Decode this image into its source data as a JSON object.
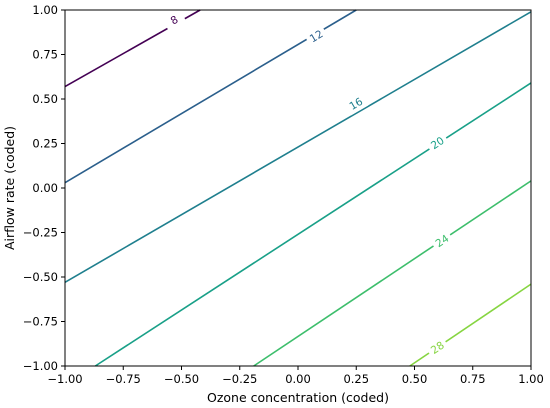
{
  "chart_data": {
    "type": "contour",
    "title": "",
    "xlabel": "Ozone concentration (coded)",
    "ylabel": "Airflow rate (coded)",
    "xlim": [
      -1.0,
      1.0
    ],
    "ylim": [
      -1.0,
      1.0
    ],
    "xticks": [
      "−1.00",
      "−0.75",
      "−0.50",
      "−0.25",
      "0.00",
      "0.25",
      "0.50",
      "0.75",
      "1.00"
    ],
    "yticks": [
      "−1.00",
      "−0.75",
      "−0.50",
      "−0.25",
      "0.00",
      "0.25",
      "0.50",
      "0.75",
      "1.00"
    ],
    "grid": false,
    "levels": [
      {
        "label": "8",
        "value": 8,
        "color": "#440154",
        "p1": [
          -1.0,
          0.57
        ],
        "p2": [
          -0.42,
          1.0
        ]
      },
      {
        "label": "12",
        "value": 12,
        "color": "#2b5f8c",
        "p1": [
          -1.0,
          0.03
        ],
        "p2": [
          0.25,
          1.0
        ]
      },
      {
        "label": "16",
        "value": 16,
        "color": "#1f7f8e",
        "p1": [
          -1.0,
          -0.53
        ],
        "p2": [
          1.0,
          0.99
        ]
      },
      {
        "label": "20",
        "value": 20,
        "color": "#19a088",
        "p1": [
          -0.87,
          -1.0
        ],
        "p2": [
          1.0,
          0.59
        ]
      },
      {
        "label": "24",
        "value": 24,
        "color": "#3dbe6c",
        "p1": [
          -0.19,
          -1.0
        ],
        "p2": [
          1.0,
          0.04
        ]
      },
      {
        "label": "28",
        "value": 28,
        "color": "#86d541",
        "p1": [
          0.48,
          -1.0
        ],
        "p2": [
          1.0,
          -0.54
        ]
      }
    ],
    "label_positions": [
      {
        "level": "8",
        "x": -0.53,
        "y": 0.94
      },
      {
        "level": "12",
        "x": 0.08,
        "y": 0.85
      },
      {
        "level": "16",
        "x": 0.25,
        "y": 0.47
      },
      {
        "level": "20",
        "x": 0.6,
        "y": 0.25
      },
      {
        "level": "24",
        "x": 0.62,
        "y": -0.3
      },
      {
        "level": "28",
        "x": 0.6,
        "y": -0.9
      }
    ]
  }
}
